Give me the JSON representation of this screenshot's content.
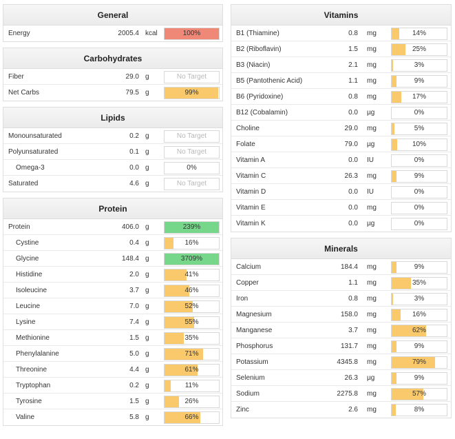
{
  "colors": {
    "red": "#f08878",
    "yellow": "#f9c96c",
    "green": "#76d68a"
  },
  "left": [
    {
      "id": "general",
      "title": "General",
      "rows": [
        {
          "name": "Energy",
          "amount": "2005.4",
          "unit": "kcal",
          "label": "100%",
          "pct": 100,
          "color": "red"
        }
      ]
    },
    {
      "id": "carbohydrates",
      "title": "Carbohydrates",
      "rows": [
        {
          "name": "Fiber",
          "amount": "29.0",
          "unit": "g",
          "label": "No Target",
          "pct": 0,
          "muted": true
        },
        {
          "name": "Net Carbs",
          "amount": "79.5",
          "unit": "g",
          "label": "99%",
          "pct": 99,
          "color": "yellow"
        }
      ]
    },
    {
      "id": "lipids",
      "title": "Lipids",
      "rows": [
        {
          "name": "Monounsaturated",
          "amount": "0.2",
          "unit": "g",
          "label": "No Target",
          "pct": 0,
          "muted": true
        },
        {
          "name": "Polyunsaturated",
          "amount": "0.1",
          "unit": "g",
          "label": "No Target",
          "pct": 0,
          "muted": true
        },
        {
          "name": "Omega-3",
          "amount": "0.0",
          "unit": "g",
          "label": "0%",
          "pct": 0,
          "sub": true
        },
        {
          "name": "Saturated",
          "amount": "4.6",
          "unit": "g",
          "label": "No Target",
          "pct": 0,
          "muted": true
        }
      ]
    },
    {
      "id": "protein",
      "title": "Protein",
      "rows": [
        {
          "name": "Protein",
          "amount": "406.0",
          "unit": "g",
          "label": "239%",
          "pct": 100,
          "color": "green"
        },
        {
          "name": "Cystine",
          "amount": "0.4",
          "unit": "g",
          "label": "16%",
          "pct": 16,
          "color": "yellow",
          "sub": true
        },
        {
          "name": "Glycine",
          "amount": "148.4",
          "unit": "g",
          "label": "3709%",
          "pct": 100,
          "color": "green",
          "sub": true
        },
        {
          "name": "Histidine",
          "amount": "2.0",
          "unit": "g",
          "label": "41%",
          "pct": 41,
          "color": "yellow",
          "sub": true
        },
        {
          "name": "Isoleucine",
          "amount": "3.7",
          "unit": "g",
          "label": "46%",
          "pct": 46,
          "color": "yellow",
          "sub": true
        },
        {
          "name": "Leucine",
          "amount": "7.0",
          "unit": "g",
          "label": "52%",
          "pct": 52,
          "color": "yellow",
          "sub": true
        },
        {
          "name": "Lysine",
          "amount": "7.4",
          "unit": "g",
          "label": "55%",
          "pct": 55,
          "color": "yellow",
          "sub": true
        },
        {
          "name": "Methionine",
          "amount": "1.5",
          "unit": "g",
          "label": "35%",
          "pct": 35,
          "color": "yellow",
          "sub": true
        },
        {
          "name": "Phenylalanine",
          "amount": "5.0",
          "unit": "g",
          "label": "71%",
          "pct": 71,
          "color": "yellow",
          "sub": true
        },
        {
          "name": "Threonine",
          "amount": "4.4",
          "unit": "g",
          "label": "61%",
          "pct": 61,
          "color": "yellow",
          "sub": true
        },
        {
          "name": "Tryptophan",
          "amount": "0.2",
          "unit": "g",
          "label": "11%",
          "pct": 11,
          "color": "yellow",
          "sub": true
        },
        {
          "name": "Tyrosine",
          "amount": "1.5",
          "unit": "g",
          "label": "26%",
          "pct": 26,
          "color": "yellow",
          "sub": true
        },
        {
          "name": "Valine",
          "amount": "5.8",
          "unit": "g",
          "label": "66%",
          "pct": 66,
          "color": "yellow",
          "sub": true
        }
      ]
    }
  ],
  "right": [
    {
      "id": "vitamins",
      "title": "Vitamins",
      "rows": [
        {
          "name": "B1 (Thiamine)",
          "amount": "0.8",
          "unit": "mg",
          "label": "14%",
          "pct": 14,
          "color": "yellow"
        },
        {
          "name": "B2 (Riboflavin)",
          "amount": "1.5",
          "unit": "mg",
          "label": "25%",
          "pct": 25,
          "color": "yellow"
        },
        {
          "name": "B3 (Niacin)",
          "amount": "2.1",
          "unit": "mg",
          "label": "3%",
          "pct": 3,
          "color": "yellow"
        },
        {
          "name": "B5 (Pantothenic Acid)",
          "amount": "1.1",
          "unit": "mg",
          "label": "9%",
          "pct": 9,
          "color": "yellow"
        },
        {
          "name": "B6 (Pyridoxine)",
          "amount": "0.8",
          "unit": "mg",
          "label": "17%",
          "pct": 17,
          "color": "yellow"
        },
        {
          "name": "B12 (Cobalamin)",
          "amount": "0.0",
          "unit": "µg",
          "label": "0%",
          "pct": 0
        },
        {
          "name": "Choline",
          "amount": "29.0",
          "unit": "mg",
          "label": "5%",
          "pct": 5,
          "color": "yellow"
        },
        {
          "name": "Folate",
          "amount": "79.0",
          "unit": "µg",
          "label": "10%",
          "pct": 10,
          "color": "yellow"
        },
        {
          "name": "Vitamin A",
          "amount": "0.0",
          "unit": "IU",
          "label": "0%",
          "pct": 0
        },
        {
          "name": "Vitamin C",
          "amount": "26.3",
          "unit": "mg",
          "label": "9%",
          "pct": 9,
          "color": "yellow"
        },
        {
          "name": "Vitamin D",
          "amount": "0.0",
          "unit": "IU",
          "label": "0%",
          "pct": 0
        },
        {
          "name": "Vitamin E",
          "amount": "0.0",
          "unit": "mg",
          "label": "0%",
          "pct": 0
        },
        {
          "name": "Vitamin K",
          "amount": "0.0",
          "unit": "µg",
          "label": "0%",
          "pct": 0
        }
      ]
    },
    {
      "id": "minerals",
      "title": "Minerals",
      "rows": [
        {
          "name": "Calcium",
          "amount": "184.4",
          "unit": "mg",
          "label": "9%",
          "pct": 9,
          "color": "yellow"
        },
        {
          "name": "Copper",
          "amount": "1.1",
          "unit": "mg",
          "label": "35%",
          "pct": 35,
          "color": "yellow"
        },
        {
          "name": "Iron",
          "amount": "0.8",
          "unit": "mg",
          "label": "3%",
          "pct": 3,
          "color": "yellow"
        },
        {
          "name": "Magnesium",
          "amount": "158.0",
          "unit": "mg",
          "label": "16%",
          "pct": 16,
          "color": "yellow"
        },
        {
          "name": "Manganese",
          "amount": "3.7",
          "unit": "mg",
          "label": "62%",
          "pct": 62,
          "color": "yellow"
        },
        {
          "name": "Phosphorus",
          "amount": "131.7",
          "unit": "mg",
          "label": "9%",
          "pct": 9,
          "color": "yellow"
        },
        {
          "name": "Potassium",
          "amount": "4345.8",
          "unit": "mg",
          "label": "79%",
          "pct": 79,
          "color": "yellow"
        },
        {
          "name": "Selenium",
          "amount": "26.3",
          "unit": "µg",
          "label": "9%",
          "pct": 9,
          "color": "yellow"
        },
        {
          "name": "Sodium",
          "amount": "2275.8",
          "unit": "mg",
          "label": "57%",
          "pct": 57,
          "color": "yellow"
        },
        {
          "name": "Zinc",
          "amount": "2.6",
          "unit": "mg",
          "label": "8%",
          "pct": 8,
          "color": "yellow"
        }
      ]
    }
  ]
}
